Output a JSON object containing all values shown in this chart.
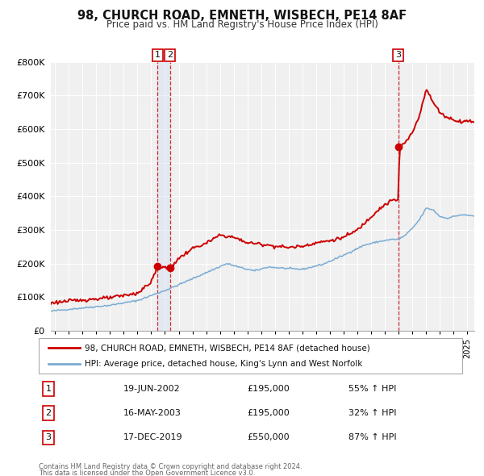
{
  "title": "98, CHURCH ROAD, EMNETH, WISBECH, PE14 8AF",
  "subtitle": "Price paid vs. HM Land Registry's House Price Index (HPI)",
  "ylim": [
    0,
    800000
  ],
  "yticks": [
    0,
    100000,
    200000,
    300000,
    400000,
    500000,
    600000,
    700000,
    800000
  ],
  "ytick_labels": [
    "£0",
    "£100K",
    "£200K",
    "£300K",
    "£400K",
    "£500K",
    "£600K",
    "£700K",
    "£800K"
  ],
  "xlim_start": 1994.7,
  "xlim_end": 2025.5,
  "legend_line1": "98, CHURCH ROAD, EMNETH, WISBECH, PE14 8AF (detached house)",
  "legend_line2": "HPI: Average price, detached house, King's Lynn and West Norfolk",
  "transaction1_date": "19-JUN-2002",
  "transaction1_price": "£195,000",
  "transaction1_hpi": "55% ↑ HPI",
  "transaction2_date": "16-MAY-2003",
  "transaction2_price": "£195,000",
  "transaction2_hpi": "32% ↑ HPI",
  "transaction3_date": "17-DEC-2019",
  "transaction3_price": "£550,000",
  "transaction3_hpi": "87% ↑ HPI",
  "footnote1": "Contains HM Land Registry data © Crown copyright and database right 2024.",
  "footnote2": "This data is licensed under the Open Government Licence v3.0.",
  "line_color": "#cc0000",
  "hpi_color": "#7aabd4",
  "background_color": "#ffffff",
  "plot_bg_color": "#f0f0f0",
  "span_color": "#c8d8f0"
}
